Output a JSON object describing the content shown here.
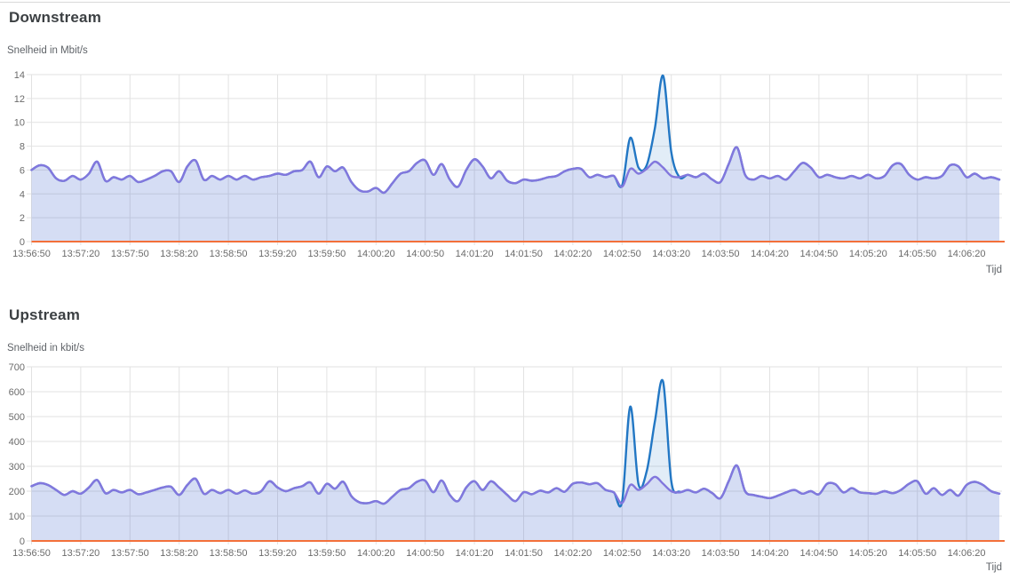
{
  "page": {
    "background": "#ffffff"
  },
  "chart_data": [
    {
      "type": "line",
      "title": "Downstream",
      "ylabel": "Snelheid in Mbit/s",
      "xlabel": "Tijd",
      "ylim": [
        0,
        14
      ],
      "y_ticks": [
        0,
        2,
        4,
        6,
        8,
        10,
        12,
        14
      ],
      "grid": true,
      "legend_position": "none",
      "sample_interval_seconds": 5,
      "x_tick_labels": [
        "13:56:50",
        "13:57:20",
        "13:57:50",
        "13:58:20",
        "13:58:50",
        "13:59:20",
        "13:59:50",
        "14:00:20",
        "14:00:50",
        "14:01:20",
        "14:01:50",
        "14:02:20",
        "14:02:50",
        "14:03:20",
        "14:03:50",
        "14:04:20",
        "14:04:50",
        "14:05:20",
        "14:05:50",
        "14:06:20"
      ],
      "series": [
        {
          "name": "downstream-rate",
          "color": "#8277dd",
          "fill": "rgba(130,119,221,0.13)",
          "values": [
            6.0,
            6.4,
            6.2,
            5.3,
            5.1,
            5.5,
            5.2,
            5.7,
            6.7,
            5.1,
            5.4,
            5.2,
            5.5,
            5.0,
            5.2,
            5.5,
            5.9,
            5.9,
            5.0,
            6.3,
            6.8,
            5.2,
            5.5,
            5.2,
            5.5,
            5.2,
            5.5,
            5.2,
            5.4,
            5.5,
            5.7,
            5.6,
            5.9,
            6.0,
            6.7,
            5.4,
            6.3,
            5.9,
            6.2,
            5.0,
            4.3,
            4.2,
            4.5,
            4.1,
            4.9,
            5.7,
            5.9,
            6.6,
            6.8,
            5.6,
            6.5,
            5.2,
            4.6,
            6.0,
            6.9,
            6.3,
            5.3,
            5.9,
            5.1,
            4.9,
            5.2,
            5.1,
            5.2,
            5.4,
            5.5,
            5.9,
            6.1,
            6.1,
            5.4,
            5.6,
            5.4,
            5.5,
            4.6,
            6.1,
            5.7,
            6.1,
            6.7,
            6.2,
            5.5,
            5.4,
            5.6,
            5.4,
            5.7,
            5.2,
            5.0,
            6.5,
            7.9,
            5.6,
            5.2,
            5.5,
            5.3,
            5.5,
            5.2,
            5.9,
            6.6,
            6.2,
            5.4,
            5.6,
            5.4,
            5.3,
            5.5,
            5.3,
            5.6,
            5.3,
            5.5,
            6.4,
            6.5,
            5.6,
            5.2,
            5.4,
            5.3,
            5.5,
            6.4,
            6.3,
            5.4,
            5.7,
            5.3,
            5.4,
            5.2
          ]
        },
        {
          "name": "downstream-peak",
          "color": "#2277c4",
          "fill": "rgba(34,119,196,0.13)",
          "values": [
            6.0,
            6.4,
            6.2,
            5.3,
            5.1,
            5.5,
            5.2,
            5.7,
            6.7,
            5.1,
            5.4,
            5.2,
            5.5,
            5.0,
            5.2,
            5.5,
            5.9,
            5.9,
            5.0,
            6.3,
            6.8,
            5.2,
            5.5,
            5.2,
            5.5,
            5.2,
            5.5,
            5.2,
            5.4,
            5.5,
            5.7,
            5.6,
            5.9,
            6.0,
            6.7,
            5.4,
            6.3,
            5.9,
            6.2,
            5.0,
            4.3,
            4.2,
            4.5,
            4.1,
            4.9,
            5.7,
            5.9,
            6.6,
            6.8,
            5.6,
            6.5,
            5.2,
            4.6,
            6.0,
            6.9,
            6.3,
            5.3,
            5.9,
            5.1,
            4.9,
            5.2,
            5.1,
            5.2,
            5.4,
            5.5,
            5.9,
            6.1,
            6.1,
            5.4,
            5.6,
            5.4,
            5.5,
            4.7,
            8.7,
            6.2,
            6.4,
            9.5,
            13.9,
            7.5,
            5.4,
            5.6,
            5.4,
            5.7,
            5.2,
            5.0,
            6.5,
            7.9,
            5.6,
            5.2,
            5.5,
            5.3,
            5.5,
            5.2,
            5.9,
            6.6,
            6.2,
            5.4,
            5.6,
            5.4,
            5.3,
            5.5,
            5.3,
            5.6,
            5.3,
            5.5,
            6.4,
            6.5,
            5.6,
            5.2,
            5.4,
            5.3,
            5.5,
            6.4,
            6.3,
            5.4,
            5.7,
            5.3,
            5.4,
            5.2
          ]
        },
        {
          "name": "zero-baseline",
          "color": "#f3703a",
          "constant": 0
        }
      ]
    },
    {
      "type": "line",
      "title": "Upstream",
      "ylabel": "Snelheid in kbit/s",
      "xlabel": "Tijd",
      "ylim": [
        0,
        700
      ],
      "y_ticks": [
        0,
        100,
        200,
        300,
        400,
        500,
        600,
        700
      ],
      "grid": true,
      "legend_position": "none",
      "sample_interval_seconds": 5,
      "x_tick_labels": [
        "13:56:50",
        "13:57:20",
        "13:57:50",
        "13:58:20",
        "13:58:50",
        "13:59:20",
        "13:59:50",
        "14:00:20",
        "14:00:50",
        "14:01:20",
        "14:01:50",
        "14:02:20",
        "14:02:50",
        "14:03:20",
        "14:03:50",
        "14:04:20",
        "14:04:50",
        "14:05:20",
        "14:05:50",
        "14:06:20"
      ],
      "series": [
        {
          "name": "upstream-rate",
          "color": "#8277dd",
          "fill": "rgba(130,119,221,0.13)",
          "values": [
            220,
            232,
            225,
            205,
            185,
            200,
            190,
            215,
            245,
            192,
            205,
            195,
            205,
            188,
            195,
            205,
            215,
            218,
            185,
            225,
            250,
            190,
            205,
            192,
            205,
            190,
            203,
            190,
            200,
            240,
            215,
            200,
            212,
            220,
            235,
            190,
            230,
            210,
            238,
            180,
            155,
            152,
            160,
            150,
            178,
            205,
            212,
            238,
            242,
            196,
            243,
            185,
            160,
            215,
            240,
            205,
            240,
            215,
            185,
            160,
            196,
            188,
            202,
            195,
            212,
            198,
            230,
            235,
            228,
            232,
            205,
            195,
            152,
            225,
            205,
            228,
            258,
            230,
            200,
            195,
            205,
            195,
            210,
            192,
            172,
            240,
            303,
            200,
            185,
            178,
            172,
            182,
            195,
            205,
            190,
            200,
            188,
            230,
            228,
            195,
            212,
            195,
            192,
            190,
            200,
            192,
            205,
            230,
            240,
            190,
            212,
            185,
            205,
            182,
            225,
            238,
            225,
            200,
            190
          ]
        },
        {
          "name": "upstream-peak",
          "color": "#2277c4",
          "fill": "rgba(34,119,196,0.13)",
          "values": [
            220,
            232,
            225,
            205,
            185,
            200,
            190,
            215,
            245,
            192,
            205,
            195,
            205,
            188,
            195,
            205,
            215,
            218,
            185,
            225,
            250,
            190,
            205,
            192,
            205,
            190,
            203,
            190,
            200,
            240,
            215,
            200,
            212,
            220,
            235,
            190,
            230,
            210,
            238,
            180,
            155,
            152,
            160,
            150,
            178,
            205,
            212,
            238,
            242,
            196,
            243,
            185,
            160,
            215,
            240,
            205,
            240,
            215,
            185,
            160,
            196,
            188,
            202,
            195,
            212,
            198,
            230,
            235,
            228,
            232,
            205,
            195,
            158,
            540,
            228,
            280,
            480,
            640,
            240,
            198,
            205,
            195,
            210,
            192,
            172,
            240,
            303,
            200,
            185,
            178,
            172,
            182,
            195,
            205,
            190,
            200,
            188,
            230,
            228,
            195,
            212,
            195,
            192,
            190,
            200,
            192,
            205,
            230,
            240,
            190,
            212,
            185,
            205,
            182,
            225,
            238,
            225,
            200,
            190
          ]
        },
        {
          "name": "zero-baseline",
          "color": "#f3703a",
          "constant": 0
        }
      ]
    }
  ]
}
